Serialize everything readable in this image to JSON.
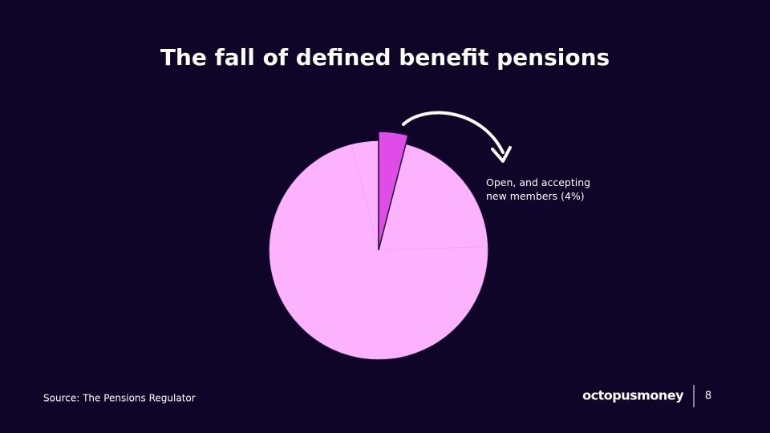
{
  "title": "The fall of defined benefit pensions",
  "source": "Source: The Pensions Regulator",
  "logo": "octopusmoney",
  "page_number": "8",
  "chart_data": {
    "type": "pie",
    "categories": [
      "Open, and accepting new members (4%)",
      null,
      null,
      null
    ],
    "values": [
      4,
      20.5,
      71.5,
      4
    ],
    "colors": [
      "#e04ce8",
      "#fdb2fd",
      "#fdb2fd",
      "#fdb2fd"
    ]
  }
}
